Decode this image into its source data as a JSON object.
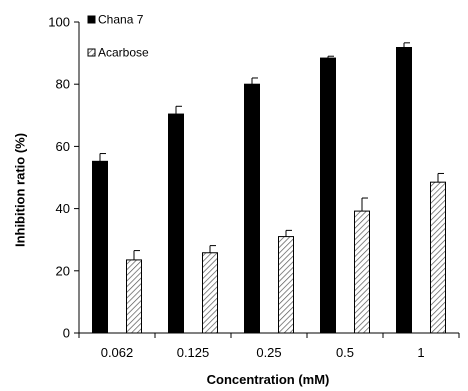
{
  "chart_data": {
    "type": "bar",
    "title": "",
    "xlabel": "Concentration (mM)",
    "ylabel": "Inhibition ratio (%)",
    "categories": [
      "0.062",
      "0.125",
      "0.25",
      "0.5",
      "1"
    ],
    "series": [
      {
        "name": "Chana 7",
        "values": [
          55.2,
          70.4,
          80.0,
          88.4,
          91.8
        ],
        "errors": [
          2.5,
          2.5,
          2.0,
          0.6,
          1.5
        ],
        "color": "#000000",
        "pattern": "solid"
      },
      {
        "name": "Acarbose",
        "values": [
          23.5,
          25.8,
          31.0,
          39.2,
          48.5
        ],
        "errors": [
          3.0,
          2.3,
          2.0,
          4.2,
          2.8
        ],
        "color": "#ffffff",
        "pattern": "diagonal-hatch"
      }
    ],
    "ylim": [
      0,
      100
    ],
    "yticks": [
      "0",
      "20",
      "40",
      "60",
      "80",
      "100"
    ],
    "grid": false,
    "legend_position": "top-left"
  }
}
